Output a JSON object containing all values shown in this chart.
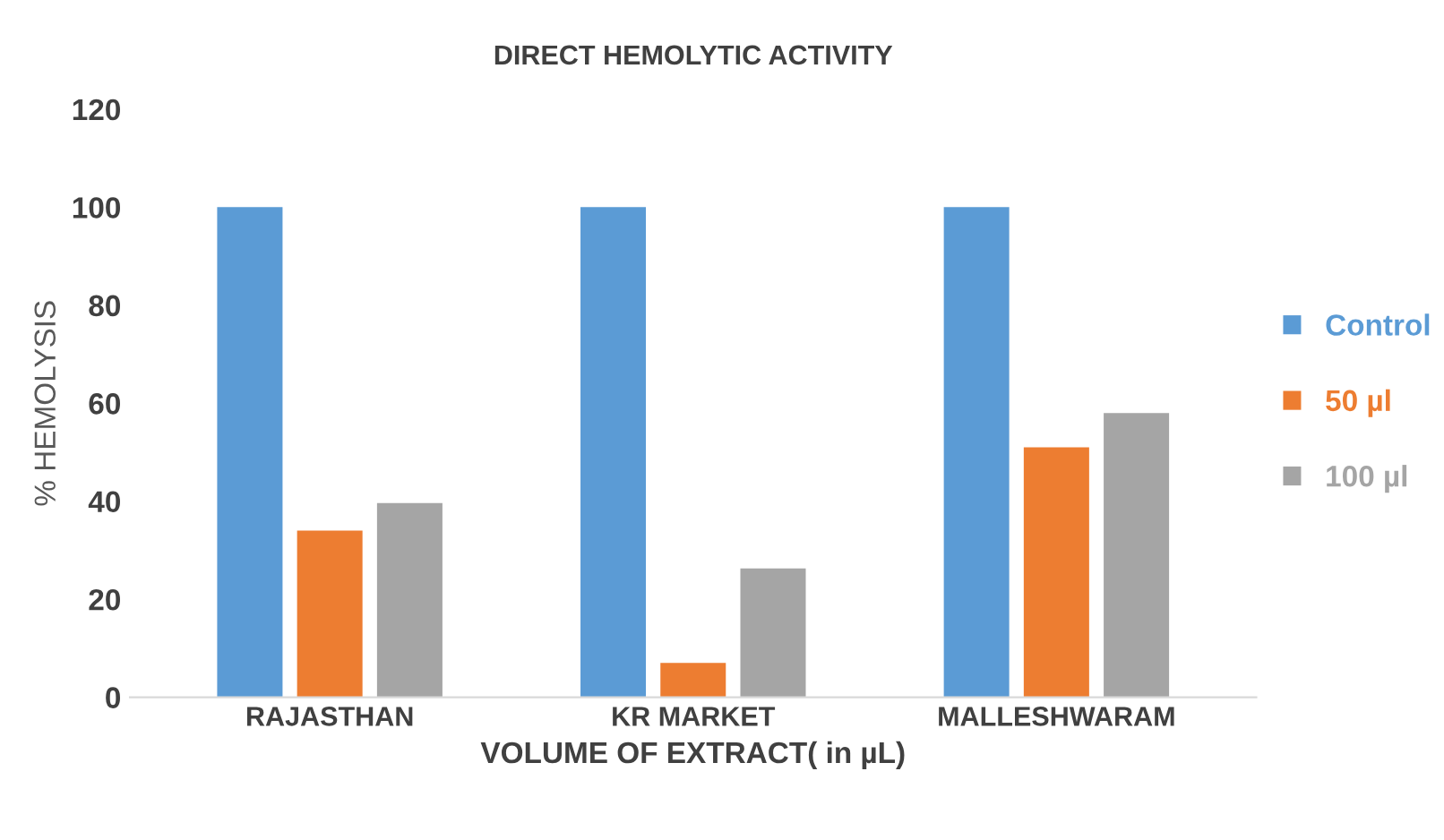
{
  "chart_data": {
    "type": "bar",
    "title": "DIRECT HEMOLYTIC ACTIVITY",
    "xlabel": "VOLUME OF EXTRACT( in µL)",
    "ylabel": "% HEMOLYSIS",
    "categories": [
      "RAJASTHAN",
      "KR MARKET",
      "MALLESHWARAM"
    ],
    "series": [
      {
        "name": "Control",
        "color": "#5b9bd5",
        "values": [
          100,
          100,
          100
        ]
      },
      {
        "name": "50 µl",
        "color": "#ed7d31",
        "values": [
          34,
          7,
          51
        ]
      },
      {
        "name": "100 µl",
        "color": "#a5a5a5",
        "values": [
          39.6,
          26.3,
          58
        ]
      }
    ],
    "ylim": [
      0,
      120
    ],
    "yticks": [
      0,
      20,
      40,
      60,
      80,
      100,
      120
    ],
    "grid": false,
    "legend": "right"
  }
}
